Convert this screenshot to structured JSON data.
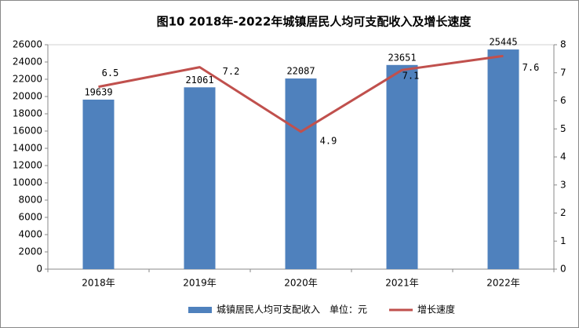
{
  "chart_data": {
    "type": "bar-line",
    "title": "图10 2018年-2022年城镇居民人均可支配收入及增长速度",
    "categories": [
      "2018年",
      "2019年",
      "2020年",
      "2021年",
      "2022年"
    ],
    "series": [
      {
        "name": "城镇居民人均可支配收入　单位：元",
        "type": "bar",
        "color": "#4f81bd",
        "values": [
          19639,
          21061,
          22087,
          23651,
          25445
        ]
      },
      {
        "name": "增长速度",
        "type": "line",
        "color": "#c0504d",
        "axis": "y2",
        "values": [
          6.5,
          7.2,
          4.9,
          7.1,
          7.6
        ]
      }
    ],
    "ylim": [
      0,
      26000
    ],
    "yticks": [
      0,
      2000,
      4000,
      6000,
      8000,
      10000,
      12000,
      14000,
      16000,
      18000,
      20000,
      22000,
      24000,
      26000
    ],
    "y2lim": [
      0,
      8
    ],
    "y2ticks": [
      0,
      1,
      2,
      3,
      4,
      5,
      6,
      7,
      8
    ],
    "grid": false,
    "legend": "bottom"
  }
}
